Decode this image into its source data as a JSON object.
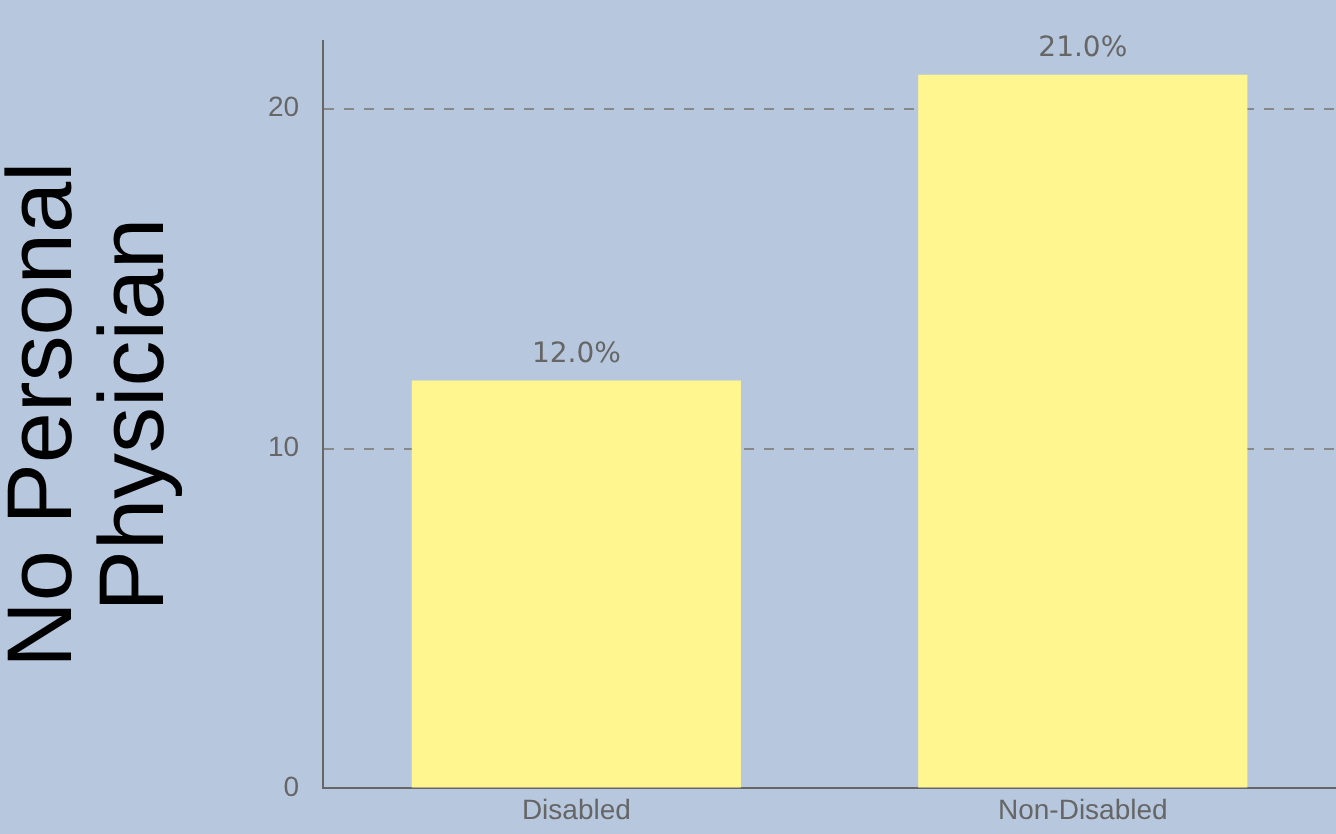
{
  "chart_data": {
    "type": "bar",
    "ylabel": "No Personal Physician",
    "categories": [
      "Disabled",
      "Non-Disabled"
    ],
    "values": [
      12.0,
      21.0
    ],
    "color": "#fff68f",
    "value_labels": [
      "12.0%",
      "21.0%"
    ],
    "ylim": [
      0,
      22
    ],
    "yticks": [
      0,
      10,
      20
    ],
    "grid": "y"
  }
}
